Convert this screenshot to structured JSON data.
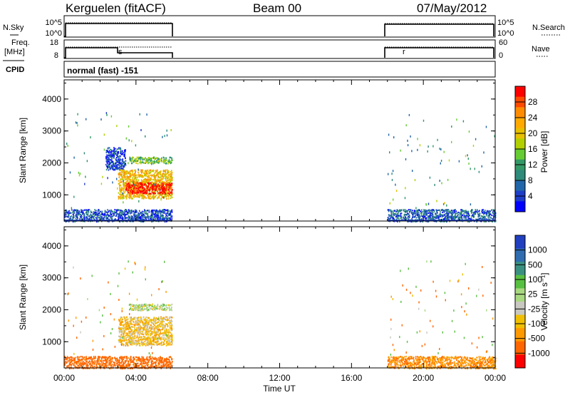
{
  "header": {
    "station": "Kerguelen (fitACF)",
    "beam": "Beam 00",
    "date": "07/May/2012"
  },
  "strip_labels": {
    "nsky": "N.Sky",
    "nsearch": "N.Search",
    "freq_line1": "Freq.",
    "freq_line2": "[MHz]",
    "nave": "Nave",
    "cpid": "CPID",
    "cpid_value": "normal (fast) -151",
    "noise_ticks_left": [
      "10^5",
      "10^0"
    ],
    "noise_ticks_right": [
      "10^5",
      "10^0"
    ],
    "freq_ticks": [
      "18",
      "8"
    ],
    "nave_ticks": [
      "60",
      "0"
    ]
  },
  "axes": {
    "ylabel": "Slant Range [km]",
    "xlabel": "Time UT",
    "y_ticks": [
      "4000",
      "3000",
      "2000",
      "1000"
    ],
    "x_ticks": [
      "00:00",
      "04:00",
      "08:00",
      "12:00",
      "16:00",
      "20:00",
      "00:00"
    ]
  },
  "power_scale": {
    "label": "Power [dB]",
    "ticks": [
      "28",
      "24",
      "20",
      "16",
      "12",
      "8",
      "4"
    ],
    "colors": [
      "#ff0000",
      "#ff4a00",
      "#ff8c00",
      "#ffaa00",
      "#e8c000",
      "#b2d000",
      "#66cc33",
      "#339966",
      "#2e8a7a",
      "#2266aa",
      "#1e3dc8",
      "#0000ff"
    ]
  },
  "velocity_scale": {
    "label": "Velocity [m s⁻¹]",
    "ticks": [
      "1000",
      "500",
      "100",
      "25",
      "-25",
      "-100",
      "-500",
      "-1000"
    ],
    "colors": [
      "#2040c0",
      "#2f6db0",
      "#3a9080",
      "#58c040",
      "#a8d880",
      "#c8c8c0",
      "#f0c000",
      "#ff9900",
      "#ff6600",
      "#ff0000"
    ]
  },
  "chart_data": {
    "type": "heatmap",
    "x_range_hours": [
      0,
      24
    ],
    "y_range_km": [
      180,
      4600
    ],
    "operating_periods_hours": [
      [
        0,
        6
      ],
      [
        18,
        24
      ]
    ],
    "panels": [
      {
        "name": "power",
        "colorbar_range_db": [
          0,
          30
        ],
        "regions": [
          {
            "t": [
              0.0,
              6.0
            ],
            "range_km": [
              180,
              560
            ],
            "level": 5
          },
          {
            "t": [
              18.0,
              24.0
            ],
            "range_km": [
              180,
              560
            ],
            "level": 6
          },
          {
            "t": [
              2.3,
              3.4
            ],
            "range_km": [
              1800,
              2500
            ],
            "level": 4
          },
          {
            "t": [
              3.0,
              6.0
            ],
            "range_km": [
              900,
              1800
            ],
            "level": 20
          },
          {
            "t": [
              3.6,
              6.0
            ],
            "range_km": [
              2000,
              2200
            ],
            "level": 13
          },
          {
            "t": [
              3.4,
              6.0
            ],
            "range_km": [
              1050,
              1400
            ],
            "level": 29
          }
        ]
      },
      {
        "name": "velocity",
        "colorbar_range_ms": [
          -1000,
          1000
        ],
        "regions": [
          {
            "t": [
              0.0,
              6.0
            ],
            "range_km": [
              180,
              560
            ],
            "level": -150
          },
          {
            "t": [
              18.0,
              24.0
            ],
            "range_km": [
              180,
              560
            ],
            "level": -80
          },
          {
            "t": [
              3.0,
              6.0
            ],
            "range_km": [
              900,
              1800
            ],
            "level": 0
          },
          {
            "t": [
              3.6,
              6.0
            ],
            "range_km": [
              2000,
              2200
            ],
            "level": 60
          }
        ]
      }
    ],
    "noise_strip": {
      "log_range": [
        0,
        5
      ],
      "active_level": 4.2
    },
    "freq_strip": {
      "range_mhz": [
        8,
        18
      ],
      "freq_values": [
        {
          "t": [
            0,
            3
          ],
          "mhz": 15
        },
        {
          "t": [
            3,
            6
          ],
          "mhz": 12
        },
        {
          "t": [
            18,
            24
          ],
          "mhz": 15
        }
      ]
    }
  }
}
